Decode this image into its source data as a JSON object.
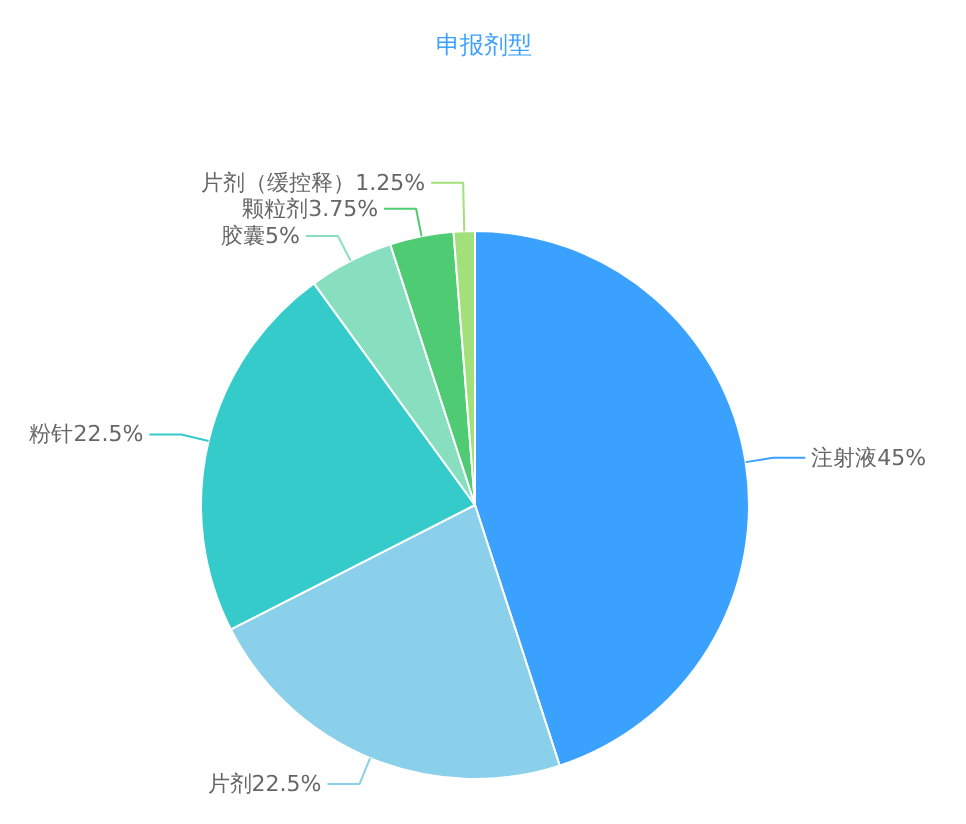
{
  "chart_data": {
    "type": "pie",
    "title": "申报剂型",
    "categories": [
      "注射液",
      "片剂",
      "粉针",
      "胶囊",
      "颗粒剂",
      "片剂（缓控释）"
    ],
    "values": [
      45,
      22.5,
      22.5,
      5,
      3.75,
      1.25
    ],
    "colors": [
      "#3ba1ff",
      "#8ad0ea",
      "#36cbcb",
      "#87dfbf",
      "#4ecb73",
      "#a1e07a"
    ],
    "value_labels": [
      "45%",
      "22.5%",
      "22.5%",
      "5%",
      "3.75%",
      "1.25%"
    ]
  }
}
